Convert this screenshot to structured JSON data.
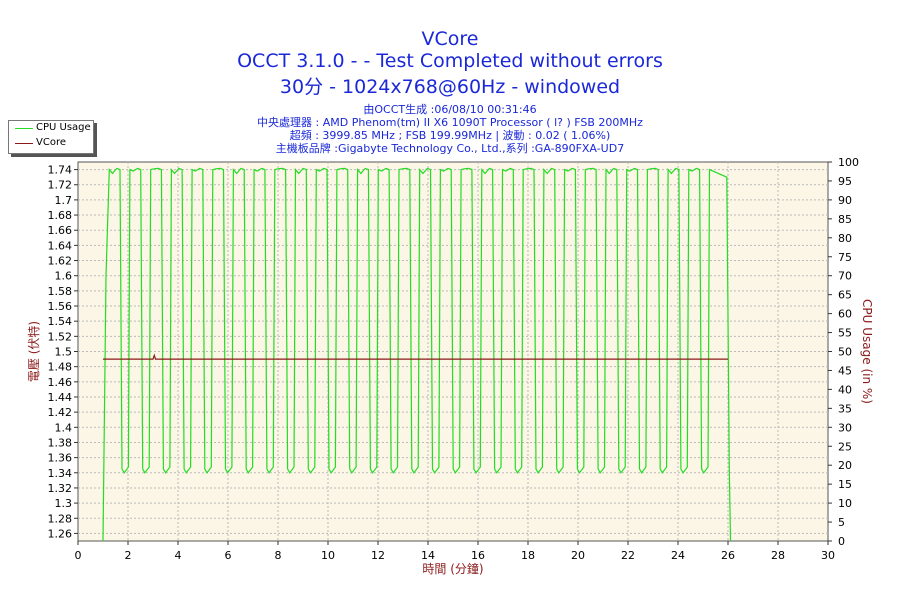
{
  "header": {
    "title": "VCore",
    "subtitle": "OCCT 3.1.0 -  - Test Completed without errors",
    "subtitle2": "30分 - 1024x768@60Hz - windowed",
    "info_lines": [
      "由OCCT生成 :06/08/10 00:31:46",
      "中央處理器 : AMD Phenom(tm) II X6 1090T Processor (   l? ) FSB 200MHz",
      "超頻 : 3999.85 MHz ; FSB 199.99MHz | 波動 : 0.02 ( 1.06%)",
      "主機板品牌 :Gigabyte Technology Co., Ltd.,系列 :GA-890FXA-UD7"
    ]
  },
  "legend": [
    {
      "label": "CPU Usage",
      "color": "#22dd22"
    },
    {
      "label": "VCore",
      "color": "#8b1a1a"
    }
  ],
  "chart_data": {
    "type": "line",
    "title": "VCore",
    "xlabel": "時間 (分鐘)",
    "ylabel_left": "電壓 (伏特)",
    "ylabel_right": "CPU Usage (in %)",
    "xlim": [
      0,
      30
    ],
    "ylim_left": [
      1.25,
      1.75
    ],
    "ylim_right": [
      0,
      100
    ],
    "x_ticks": [
      "0",
      "2",
      "4",
      "6",
      "8",
      "10",
      "12",
      "14",
      "16",
      "18",
      "20",
      "22",
      "24",
      "26",
      "28",
      "30"
    ],
    "y_left_ticks": [
      "1.26",
      "1.28",
      "1.3",
      "1.32",
      "1.34",
      "1.36",
      "1.38",
      "1.4",
      "1.42",
      "1.44",
      "1.46",
      "1.48",
      "1.5",
      "1.52",
      "1.54",
      "1.56",
      "1.58",
      "1.6",
      "1.62",
      "1.64",
      "1.66",
      "1.68",
      "1.7",
      "1.72",
      "1.74"
    ],
    "y_right_ticks": [
      "0",
      "5",
      "10",
      "15",
      "20",
      "25",
      "30",
      "35",
      "40",
      "45",
      "50",
      "55",
      "60",
      "65",
      "70",
      "75",
      "80",
      "85",
      "90",
      "95",
      "100"
    ],
    "grid": true,
    "legend_position": "top-left",
    "series": [
      {
        "name": "VCore",
        "color": "#8b1a1a",
        "axis": "left",
        "x": [
          1,
          3.0,
          3.05,
          3.1,
          26
        ],
        "y": [
          1.49,
          1.49,
          1.495,
          1.49,
          1.49
        ]
      },
      {
        "name": "CPU Usage",
        "color": "#22dd22",
        "axis": "right",
        "cycle_period_min": 0.86,
        "high": 98,
        "low": 19,
        "start_min": 1.0,
        "end_min": 26.1
      }
    ]
  }
}
